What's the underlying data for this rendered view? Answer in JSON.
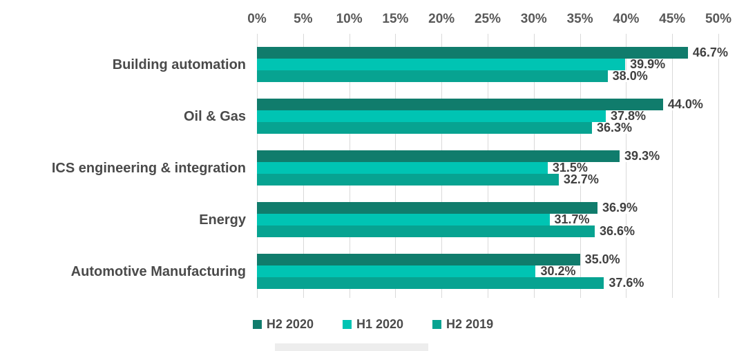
{
  "chart_data": {
    "type": "bar",
    "orientation": "horizontal",
    "title": "",
    "xlabel": "",
    "ylabel": "",
    "categories": [
      "Building automation",
      "Oil & Gas",
      "ICS engineering & integration",
      "Energy",
      "Automotive Manufacturing"
    ],
    "series": [
      {
        "name": "H2 2020",
        "color": "#107C6C",
        "values": [
          46.7,
          44.0,
          39.3,
          36.9,
          35.0
        ],
        "labels": [
          "46.7%",
          "44.0%",
          "39.3%",
          "36.9%",
          "35.0%"
        ]
      },
      {
        "name": "H1 2020",
        "color": "#00C4B3",
        "values": [
          39.9,
          37.8,
          31.5,
          31.7,
          30.2
        ],
        "labels": [
          "39.9%",
          "37.8%",
          "31.5%",
          "31.7%",
          "30.2%"
        ]
      },
      {
        "name": "H2 2019",
        "color": "#07A391",
        "values": [
          38.0,
          36.3,
          32.7,
          36.6,
          37.6
        ],
        "labels": [
          "38.0%",
          "36.3%",
          "32.7%",
          "36.6%",
          "37.6%"
        ]
      }
    ],
    "x_axis": {
      "position": "top",
      "min": 0,
      "max": 50,
      "tick_step": 5,
      "tick_labels": [
        "0%",
        "5%",
        "10%",
        "15%",
        "20%",
        "25%",
        "30%",
        "35%",
        "40%",
        "45%",
        "50%"
      ]
    },
    "grid": true,
    "legend_position": "bottom",
    "colors": {
      "gridline": "#D9D9D9",
      "axis_text": "#595959",
      "label_text": "#404040",
      "background": "#FFFFFF"
    }
  }
}
